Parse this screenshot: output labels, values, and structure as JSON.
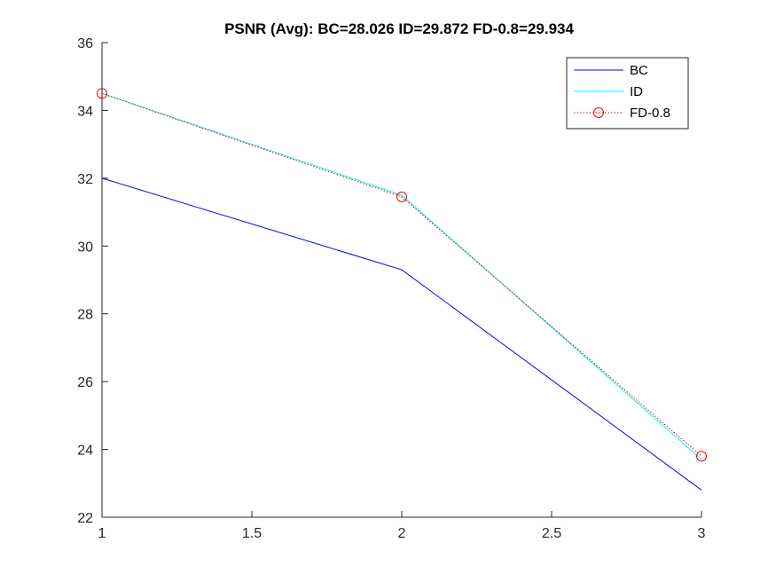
{
  "chart_data": {
    "type": "line",
    "title": "PSNR (Avg):  BC=28.026  ID=29.872  FD-0.8=29.934",
    "xlabel": "",
    "ylabel": "",
    "x": [
      1,
      2,
      3
    ],
    "xlim": [
      1,
      3
    ],
    "ylim": [
      22,
      36
    ],
    "xticks": [
      1,
      1.5,
      2,
      2.5,
      3
    ],
    "xtick_labels": [
      "1",
      "1.5",
      "2",
      "2.5",
      "3"
    ],
    "yticks": [
      22,
      24,
      26,
      28,
      30,
      32,
      34,
      36
    ],
    "ytick_labels": [
      "22",
      "24",
      "26",
      "28",
      "30",
      "32",
      "34",
      "36"
    ],
    "grid": false,
    "legend_position": "top-right",
    "series": [
      {
        "name": "BC",
        "values": [
          32.0,
          29.3,
          22.8
        ],
        "color": "#0000ff",
        "style": "solid",
        "marker": "none"
      },
      {
        "name": "ID",
        "values": [
          34.5,
          31.5,
          23.7
        ],
        "color": "#00ffff",
        "style": "solid",
        "marker": "none"
      },
      {
        "name": "FD-0.8",
        "values": [
          34.5,
          31.45,
          23.8
        ],
        "color": "#ff0000",
        "style": "dotted",
        "marker": "circle"
      }
    ]
  }
}
